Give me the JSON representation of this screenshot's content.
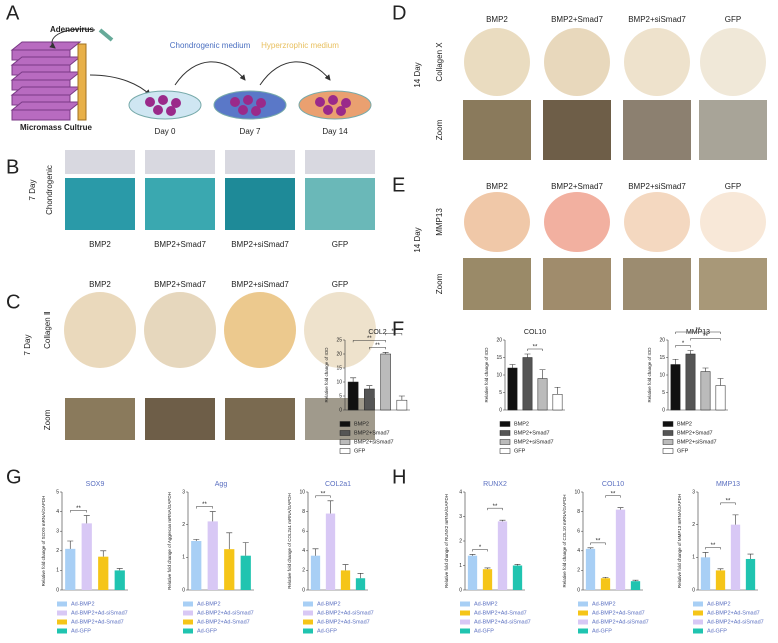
{
  "figure": {
    "letters": [
      "A",
      "B",
      "C",
      "D",
      "E",
      "F",
      "G",
      "H"
    ],
    "panel_a": {
      "adenovirus": "Adenovirus",
      "medium_1": "Chondrogenic medium",
      "medium_2": "Hyperzrophic medium",
      "culture": "Micromass Cultrue",
      "days": [
        "Day 0",
        "Day 7",
        "Day 14"
      ]
    },
    "conditions": [
      "BMP2",
      "BMP2+Smad7",
      "BMP2+siSmad7",
      "GFP"
    ],
    "panel_b": {
      "day": "7 Day",
      "stain": "Chondrogenic"
    },
    "panel_c": {
      "day": "7 Day",
      "stain": "Collagen Ⅱ",
      "zoom": "Zoom"
    },
    "panel_d": {
      "day": "14 Day",
      "stain": "Collagen X",
      "zoom": "Zoom"
    },
    "panel_e": {
      "day": "14 Day",
      "stain": "MMP13",
      "zoom": "Zoom"
    }
  },
  "chart_data": [
    {
      "type": "bar",
      "title": "COL2",
      "ylabel": "Relative fold change of IOD",
      "categories": [
        "BMP2",
        "BMP2+Smad7",
        "BMP2+siSmad7",
        "GFP"
      ],
      "colors": [
        "#111111",
        "#555555",
        "#bbbbbb",
        "#ffffff"
      ],
      "values": [
        10,
        7.5,
        20,
        3.5
      ],
      "errors": [
        1.5,
        1.2,
        0.6,
        1.5
      ],
      "ylim": [
        0,
        25
      ],
      "yticks": [
        0,
        5,
        10,
        15,
        20,
        25
      ],
      "annotations": [
        {
          "from": 1,
          "to": 2,
          "label": "**"
        },
        {
          "from": 0,
          "to": 2,
          "label": "**"
        },
        {
          "from": 2,
          "to": 3,
          "label": "**"
        }
      ]
    },
    {
      "type": "bar",
      "title": "COL10",
      "ylabel": "Relative fold change of IOD",
      "categories": [
        "BMP2",
        "BMP2+Smad7",
        "BMP2+siSmad7",
        "GFP"
      ],
      "colors": [
        "#111111",
        "#555555",
        "#bbbbbb",
        "#ffffff"
      ],
      "values": [
        12,
        15,
        9,
        4.5
      ],
      "errors": [
        1,
        1,
        2.5,
        2
      ],
      "ylim": [
        0,
        20
      ],
      "yticks": [
        0,
        5,
        10,
        15,
        20
      ],
      "annotations": [
        {
          "from": 1,
          "to": 2,
          "label": "**"
        }
      ]
    },
    {
      "type": "bar",
      "title": "MMP13",
      "ylabel": "Relative fold change of IOD",
      "categories": [
        "BMP2",
        "BMP2+Smad7",
        "BMP2+siSmad7",
        "GFP"
      ],
      "colors": [
        "#111111",
        "#555555",
        "#bbbbbb",
        "#ffffff"
      ],
      "values": [
        13,
        16,
        11,
        7
      ],
      "errors": [
        1.5,
        1,
        1,
        2
      ],
      "ylim": [
        0,
        20
      ],
      "yticks": [
        0,
        5,
        10,
        15,
        20
      ],
      "annotations": [
        {
          "from": 0,
          "to": 1,
          "label": "*"
        },
        {
          "from": 1,
          "to": 3,
          "label": "**"
        },
        {
          "from": 0,
          "to": 3,
          "label": "**"
        }
      ]
    },
    {
      "type": "bar",
      "title": "SOX9",
      "ylabel": "Relative fold change of SOX9 mRNA/GAPDH",
      "categories": [
        "Ad-BMP2",
        "Ad-BMP2+Ad-siSmad7",
        "Ad-BMP2+Ad-Smad7",
        "Ad-GFP"
      ],
      "colors": [
        "#a8cff5",
        "#d8c8f5",
        "#f5c518",
        "#20c4b0"
      ],
      "values": [
        2.1,
        3.4,
        1.7,
        1.0
      ],
      "errors": [
        0.4,
        0.4,
        0.3,
        0.1
      ],
      "ylim": [
        0,
        5
      ],
      "yticks": [
        0,
        1,
        2,
        3,
        4,
        5
      ],
      "annotations": [
        {
          "from": 0,
          "to": 1,
          "label": "**"
        }
      ]
    },
    {
      "type": "bar",
      "title": "Agg",
      "ylabel": "Relative fold change of Aggrecan mRNA/GAPDH",
      "categories": [
        "Ad-BMP2",
        "Ad-BMP2+Ad-siSmad7",
        "Ad-BMP2+Ad-Smad7",
        "Ad-GFP"
      ],
      "colors": [
        "#a8cff5",
        "#d8c8f5",
        "#f5c518",
        "#20c4b0"
      ],
      "values": [
        1.5,
        2.1,
        1.25,
        1.05
      ],
      "errors": [
        0.05,
        0.3,
        0.5,
        0.4
      ],
      "ylim": [
        0,
        3
      ],
      "yticks": [
        0,
        1,
        2,
        3
      ],
      "annotations": [
        {
          "from": 0,
          "to": 1,
          "label": "**"
        }
      ]
    },
    {
      "type": "bar",
      "title": "COL2a1",
      "ylabel": "Relative fold change of COL2a1 mRNA/GAPDH",
      "categories": [
        "Ad-BMP2",
        "Ad-BMP2+Ad-siSmad7",
        "Ad-BMP2+Ad-Smad7",
        "Ad-GFP"
      ],
      "colors": [
        "#a8cff5",
        "#d8c8f5",
        "#f5c518",
        "#20c4b0"
      ],
      "values": [
        3.5,
        7.8,
        2.0,
        1.2
      ],
      "errors": [
        0.7,
        1.3,
        0.6,
        0.5
      ],
      "ylim": [
        0,
        10
      ],
      "yticks": [
        0,
        2,
        4,
        6,
        8,
        10
      ],
      "annotations": [
        {
          "from": 0,
          "to": 1,
          "label": "**"
        }
      ]
    },
    {
      "type": "bar",
      "title": "RUNX2",
      "ylabel": "Relative fold change of RUNX2 mRNA/GAPDH",
      "categories": [
        "Ad-BMP2",
        "Ad-BMP2+Ad-Smad7",
        "Ad-BMP2+Ad-siSmad7",
        "Ad-GFP"
      ],
      "colors": [
        "#a8cff5",
        "#f5c518",
        "#d8c8f5",
        "#20c4b0"
      ],
      "values": [
        1.4,
        0.85,
        2.8,
        1.0
      ],
      "errors": [
        0.05,
        0.05,
        0.05,
        0.05
      ],
      "ylim": [
        0,
        4
      ],
      "yticks": [
        0,
        1,
        2,
        3,
        4
      ],
      "annotations": [
        {
          "from": 0,
          "to": 1,
          "label": "*"
        },
        {
          "from": 1,
          "to": 2,
          "label": "**"
        }
      ]
    },
    {
      "type": "bar",
      "title": "COL10",
      "ylabel": "Relative fold change of COL10 mRNA/GAPDH",
      "categories": [
        "Ad-BMP2",
        "Ad-BMP2+Ad-Smad7",
        "Ad-BMP2+Ad-siSmad7",
        "Ad-GFP"
      ],
      "colors": [
        "#a8cff5",
        "#f5c518",
        "#d8c8f5",
        "#20c4b0"
      ],
      "values": [
        4.2,
        1.2,
        8.2,
        0.9
      ],
      "errors": [
        0.1,
        0.1,
        0.2,
        0.1
      ],
      "ylim": [
        0,
        10
      ],
      "yticks": [
        0,
        2,
        4,
        6,
        8,
        10
      ],
      "annotations": [
        {
          "from": 0,
          "to": 1,
          "label": "**"
        },
        {
          "from": 1,
          "to": 2,
          "label": "**"
        }
      ]
    },
    {
      "type": "bar",
      "title": "MMP13",
      "ylabel": "Relative fold change of MMP13 mRNA/GAPDH",
      "categories": [
        "Ad-BMP2",
        "Ad-BMP2+Ad-Smad7",
        "Ad-BMP2+Ad-siSmad7",
        "Ad-GFP"
      ],
      "colors": [
        "#a8cff5",
        "#f5c518",
        "#d8c8f5",
        "#20c4b0"
      ],
      "values": [
        1.0,
        0.6,
        2.0,
        0.95
      ],
      "errors": [
        0.15,
        0.05,
        0.3,
        0.15
      ],
      "ylim": [
        0,
        3
      ],
      "yticks": [
        0,
        1,
        2,
        3
      ],
      "annotations": [
        {
          "from": 0,
          "to": 1,
          "label": "**"
        },
        {
          "from": 1,
          "to": 2,
          "label": "**"
        }
      ]
    }
  ]
}
